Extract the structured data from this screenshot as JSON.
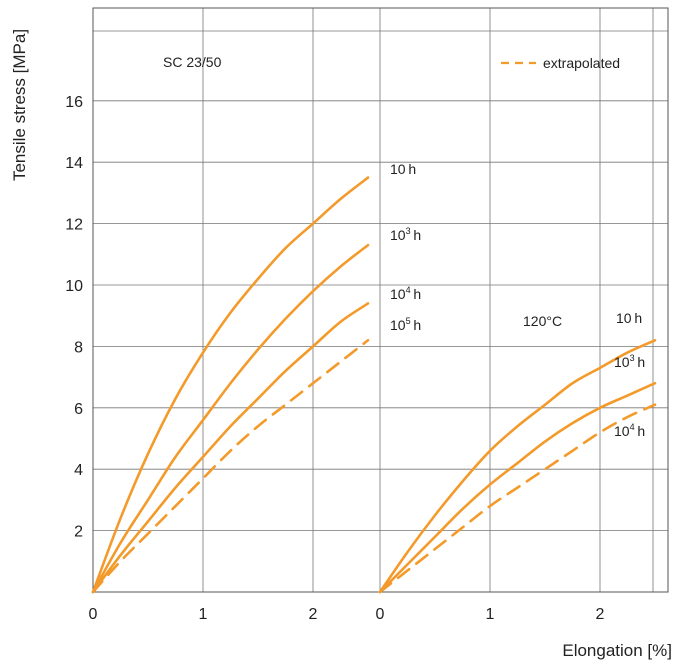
{
  "chart_data": {
    "type": "line",
    "ylabel": "Tensile stress [MPa]",
    "xlabel": "Elongation [%]",
    "ylim": [
      0,
      18
    ],
    "yticks": [
      2,
      4,
      6,
      8,
      10,
      12,
      14,
      16
    ],
    "legend": {
      "label": "extrapolated",
      "style": "dashed",
      "position": "top-right"
    },
    "colors": {
      "series": "#f39a2a",
      "grid": "#777777",
      "frame": "#555555"
    },
    "panels": [
      {
        "label": "SC 23/50",
        "xlim": [
          0,
          2.5
        ],
        "xticks": [
          0,
          1,
          2
        ],
        "series": [
          {
            "name": "10 h",
            "name_base": "10",
            "name_exp": "",
            "name_unit": "h",
            "dashed": false,
            "x": [
              0,
              0.25,
              0.5,
              0.75,
              1.0,
              1.25,
              1.5,
              1.75,
              2.0,
              2.25,
              2.5
            ],
            "y": [
              0,
              2.4,
              4.5,
              6.3,
              7.8,
              9.1,
              10.2,
              11.2,
              12.0,
              12.8,
              13.5
            ]
          },
          {
            "name": "10³ h",
            "name_base": "10",
            "name_exp": "3",
            "name_unit": "h",
            "dashed": false,
            "x": [
              0,
              0.25,
              0.5,
              0.75,
              1.0,
              1.25,
              1.5,
              1.75,
              2.0,
              2.25,
              2.5
            ],
            "y": [
              0,
              1.6,
              3.0,
              4.4,
              5.6,
              6.8,
              7.9,
              8.9,
              9.8,
              10.6,
              11.3
            ]
          },
          {
            "name": "10⁴ h",
            "name_base": "10",
            "name_exp": "4",
            "name_unit": "h",
            "dashed": false,
            "x": [
              0,
              0.25,
              0.5,
              0.75,
              1.0,
              1.25,
              1.5,
              1.75,
              2.0,
              2.25,
              2.5
            ],
            "y": [
              0,
              1.2,
              2.3,
              3.4,
              4.4,
              5.4,
              6.3,
              7.2,
              8.0,
              8.8,
              9.4
            ]
          },
          {
            "name": "10⁵ h",
            "name_base": "10",
            "name_exp": "5",
            "name_unit": "h",
            "dashed": true,
            "x": [
              0,
              0.25,
              0.5,
              0.75,
              1.0,
              1.25,
              1.5,
              1.75,
              2.0,
              2.25,
              2.5
            ],
            "y": [
              0,
              1.0,
              1.9,
              2.8,
              3.7,
              4.6,
              5.4,
              6.1,
              6.8,
              7.5,
              8.2
            ]
          }
        ]
      },
      {
        "label": "120°C",
        "xlim": [
          0,
          2.5
        ],
        "xticks": [
          0,
          1,
          2
        ],
        "series": [
          {
            "name": "10 h",
            "name_base": "10",
            "name_exp": "",
            "name_unit": "h",
            "dashed": false,
            "x": [
              0,
              0.25,
              0.5,
              0.75,
              1.0,
              1.25,
              1.5,
              1.75,
              2.0,
              2.25,
              2.5
            ],
            "y": [
              0,
              1.3,
              2.5,
              3.6,
              4.6,
              5.4,
              6.1,
              6.8,
              7.3,
              7.8,
              8.2
            ]
          },
          {
            "name": "10³ h",
            "name_base": "10",
            "name_exp": "3",
            "name_unit": "h",
            "dashed": false,
            "x": [
              0,
              0.25,
              0.5,
              0.75,
              1.0,
              1.25,
              1.5,
              1.75,
              2.0,
              2.25,
              2.5
            ],
            "y": [
              0,
              0.9,
              1.8,
              2.7,
              3.5,
              4.2,
              4.9,
              5.5,
              6.0,
              6.4,
              6.8
            ]
          },
          {
            "name": "10⁴ h",
            "name_base": "10",
            "name_exp": "4",
            "name_unit": "h",
            "dashed": true,
            "x": [
              0,
              0.25,
              0.5,
              0.75,
              1.0,
              1.25,
              1.5,
              1.75,
              2.0,
              2.25,
              2.5
            ],
            "y": [
              0,
              0.7,
              1.4,
              2.1,
              2.8,
              3.4,
              4.0,
              4.6,
              5.2,
              5.7,
              6.1
            ]
          }
        ]
      }
    ]
  }
}
